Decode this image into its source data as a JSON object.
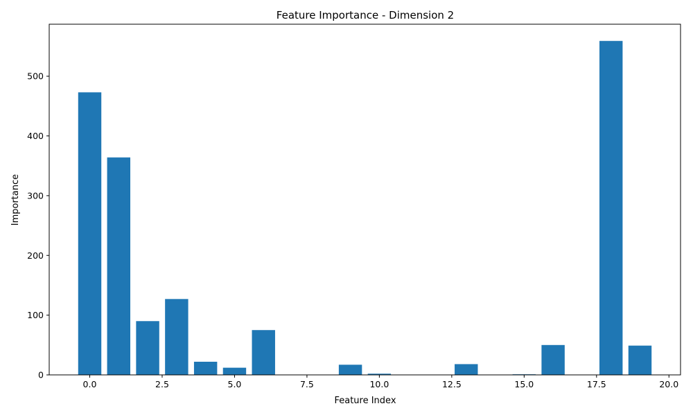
{
  "chart_data": {
    "type": "bar",
    "title": "Feature Importance - Dimension 2",
    "xlabel": "Feature Index",
    "ylabel": "Importance",
    "x": [
      0,
      1,
      2,
      3,
      4,
      5,
      6,
      7,
      8,
      9,
      10,
      11,
      12,
      13,
      14,
      15,
      16,
      17,
      18,
      19
    ],
    "values": [
      473,
      364,
      90,
      127,
      22,
      12,
      75,
      0,
      0,
      17,
      2,
      0,
      0,
      18,
      0,
      1,
      50,
      0,
      559,
      49
    ],
    "xlim": [
      -1.4,
      20.4
    ],
    "ylim": [
      0,
      587
    ],
    "xticks": [
      0.0,
      2.5,
      5.0,
      7.5,
      10.0,
      12.5,
      15.0,
      17.5,
      20.0
    ],
    "xtick_labels": [
      "0.0",
      "2.5",
      "5.0",
      "7.5",
      "10.0",
      "12.5",
      "15.0",
      "17.5",
      "20.0"
    ],
    "yticks": [
      0,
      100,
      200,
      300,
      400,
      500
    ],
    "ytick_labels": [
      "0",
      "100",
      "200",
      "300",
      "400",
      "500"
    ],
    "bar_color": "#1f77b4",
    "grid": false,
    "legend": "none"
  }
}
